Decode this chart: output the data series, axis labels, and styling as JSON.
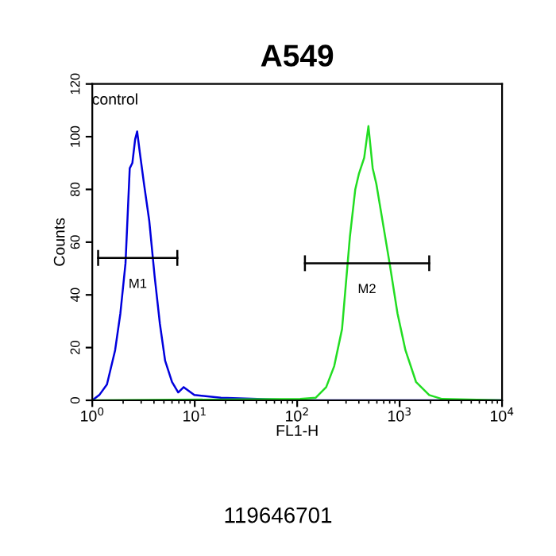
{
  "chart_data": {
    "type": "line",
    "title": "A549",
    "xlabel": "FL1-H",
    "ylabel": "Counts",
    "log": "x",
    "xlim": [
      1,
      10000
    ],
    "xticks": [
      {
        "value": 1,
        "label": "10$^{0}$"
      },
      {
        "value": 10,
        "label": "10$^{1}$"
      },
      {
        "value": 100,
        "label": "10$^{2}$"
      },
      {
        "value": 1000,
        "label": "10$^{3}$"
      },
      {
        "value": 10000,
        "label": "10$^{4}$"
      }
    ],
    "ylim": [
      0,
      120
    ],
    "yticks": [
      0,
      20,
      40,
      60,
      80,
      100,
      120
    ],
    "grid": false,
    "marker": "none",
    "line_style": "solid",
    "series": [
      {
        "color": "#0000dd",
        "x": [
          1,
          1.17,
          1.39,
          1.67,
          1.88,
          2.11,
          2.32,
          2.46,
          2.62,
          2.74,
          2.91,
          3.2,
          3.6,
          4.06,
          4.57,
          5.14,
          6.0,
          6.9,
          7.8,
          9.9,
          18,
          106,
          10000
        ],
        "values": [
          0,
          2,
          6,
          19,
          33,
          52,
          88,
          90,
          99,
          102,
          94,
          82,
          68,
          47,
          29,
          15,
          7,
          3,
          5,
          2,
          1,
          0,
          0
        ]
      },
      {
        "color": "#22dd22",
        "x": [
          1,
          107,
          152,
          192,
          230,
          274,
          327,
          369,
          401,
          451,
          496,
          546,
          593,
          668,
          798,
          953,
          1140,
          1445,
          1945,
          2600,
          10000
        ],
        "values": [
          0,
          0.5,
          1,
          5,
          13,
          27,
          62,
          80,
          86,
          92,
          104,
          88,
          82,
          70,
          52,
          33,
          19,
          7,
          2,
          0.5,
          0
        ]
      },
      {
        "color": "#000000",
        "x": [
          1.14,
          6.76
        ],
        "values": [
          54,
          54
        ],
        "errors": [
          3,
          3
        ]
      },
      {
        "color": "#000000",
        "x": [
          119,
          1945
        ],
        "values": [
          52,
          52
        ],
        "errors": [
          3,
          3
        ]
      }
    ],
    "annotations": [
      {
        "text": "control",
        "x": 2.74,
        "y": 102
      },
      {
        "text": "M1",
        "x": 2.78,
        "y": 54
      },
      {
        "text": "M2",
        "x": 480,
        "y": 52
      },
      "119646701"
    ]
  }
}
